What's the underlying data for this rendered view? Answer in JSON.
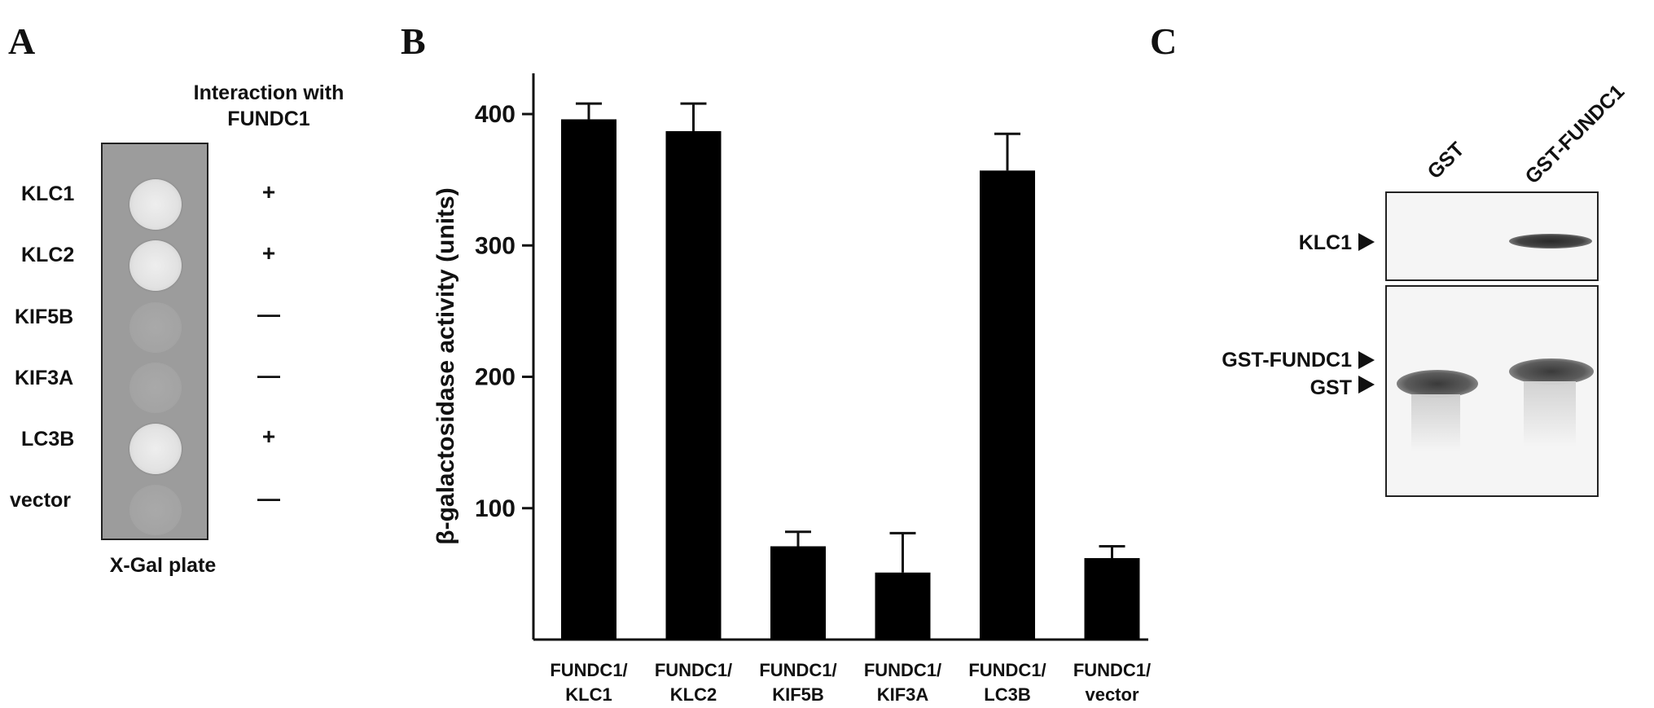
{
  "panels": {
    "a": {
      "letter": "A",
      "header": "Interaction with FUNDC1",
      "caption": "X-Gal plate",
      "rows": [
        {
          "label": "KLC1",
          "interaction": "+",
          "colony": "positive"
        },
        {
          "label": "KLC2",
          "interaction": "+",
          "colony": "positive"
        },
        {
          "label": "KIF5B",
          "interaction": "—",
          "colony": "negative"
        },
        {
          "label": "KIF3A",
          "interaction": "—",
          "colony": "negative"
        },
        {
          "label": "LC3B",
          "interaction": "+",
          "colony": "positive"
        },
        {
          "label": "vector",
          "interaction": "—",
          "colony": "negative"
        }
      ]
    },
    "b": {
      "letter": "B"
    },
    "c": {
      "letter": "C",
      "lanes": [
        "GST",
        "GST-FUNDC1"
      ],
      "top_blot_label": "KLC1",
      "bottom_blot_labels": [
        "GST-FUNDC1",
        "GST"
      ]
    }
  },
  "chart_data": {
    "type": "bar",
    "categories": [
      [
        "FUNDC1/",
        "KLC1"
      ],
      [
        "FUNDC1/",
        "KLC2"
      ],
      [
        "FUNDC1/",
        "KIF5B"
      ],
      [
        "FUNDC1/",
        "KIF3A"
      ],
      [
        "FUNDC1/",
        "LC3B"
      ],
      [
        "FUNDC1/",
        "vector"
      ]
    ],
    "values": [
      396,
      387,
      71,
      51,
      357,
      62
    ],
    "error": [
      12,
      21,
      11,
      30,
      28,
      9
    ],
    "ylabel": "β-galactosidase activity (units)",
    "yticks": [
      100,
      200,
      300,
      400
    ],
    "ylim": [
      0,
      430
    ],
    "bar_color": "#000000",
    "grid": false
  }
}
